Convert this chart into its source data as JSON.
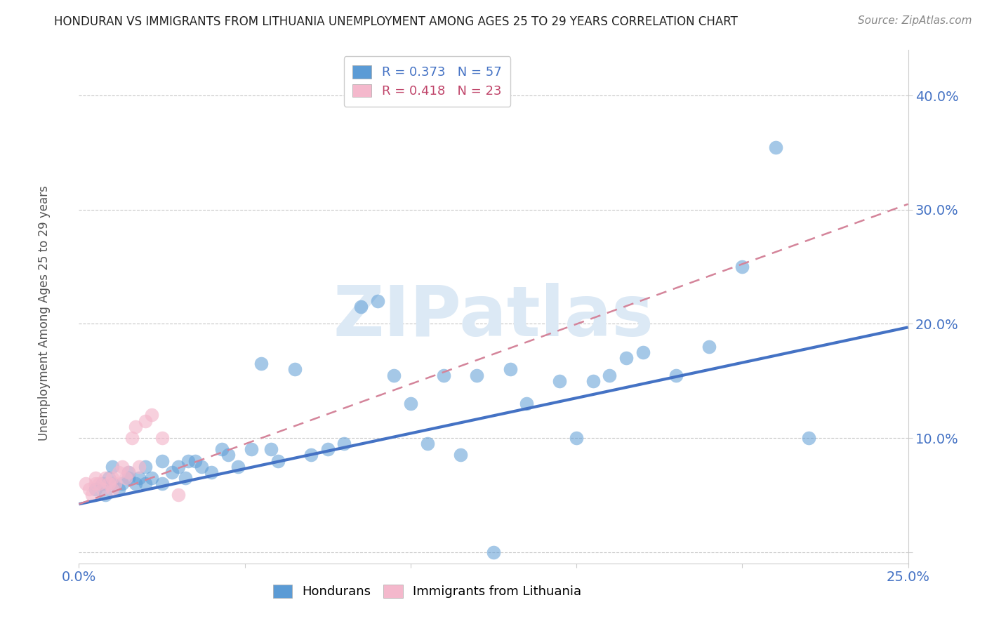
{
  "title": "HONDURAN VS IMMIGRANTS FROM LITHUANIA UNEMPLOYMENT AMONG AGES 25 TO 29 YEARS CORRELATION CHART",
  "source": "Source: ZipAtlas.com",
  "ylabel_label": "Unemployment Among Ages 25 to 29 years",
  "xlim": [
    0.0,
    0.25
  ],
  "ylim": [
    -0.01,
    0.44
  ],
  "honduran_color": "#5b9bd5",
  "honduras_edge_color": "#4472c4",
  "lithuania_color": "#f4b8cc",
  "lithuania_edge_color": "#e06080",
  "honduran_R": 0.373,
  "honduran_N": 57,
  "lithuania_R": 0.418,
  "lithuania_N": 23,
  "watermark": "ZIPatlas",
  "watermark_color": "#dce9f5",
  "background_color": "#ffffff",
  "grid_color": "#c8c8c8",
  "honduran_scatter_x": [
    0.005,
    0.007,
    0.008,
    0.009,
    0.01,
    0.01,
    0.012,
    0.013,
    0.015,
    0.015,
    0.017,
    0.018,
    0.02,
    0.02,
    0.022,
    0.025,
    0.025,
    0.028,
    0.03,
    0.032,
    0.033,
    0.035,
    0.037,
    0.04,
    0.043,
    0.045,
    0.048,
    0.052,
    0.055,
    0.058,
    0.06,
    0.065,
    0.07,
    0.075,
    0.08,
    0.085,
    0.09,
    0.095,
    0.1,
    0.105,
    0.11,
    0.115,
    0.12,
    0.13,
    0.135,
    0.145,
    0.15,
    0.155,
    0.16,
    0.165,
    0.17,
    0.18,
    0.19,
    0.2,
    0.21,
    0.22,
    0.125
  ],
  "honduran_scatter_y": [
    0.055,
    0.06,
    0.05,
    0.065,
    0.06,
    0.075,
    0.055,
    0.06,
    0.065,
    0.07,
    0.06,
    0.065,
    0.06,
    0.075,
    0.065,
    0.06,
    0.08,
    0.07,
    0.075,
    0.065,
    0.08,
    0.08,
    0.075,
    0.07,
    0.09,
    0.085,
    0.075,
    0.09,
    0.165,
    0.09,
    0.08,
    0.16,
    0.085,
    0.09,
    0.095,
    0.215,
    0.22,
    0.155,
    0.13,
    0.095,
    0.155,
    0.085,
    0.155,
    0.16,
    0.13,
    0.15,
    0.1,
    0.15,
    0.155,
    0.17,
    0.175,
    0.155,
    0.18,
    0.25,
    0.355,
    0.1,
    0.0
  ],
  "lithuania_scatter_x": [
    0.002,
    0.003,
    0.004,
    0.005,
    0.005,
    0.006,
    0.007,
    0.008,
    0.009,
    0.01,
    0.01,
    0.011,
    0.012,
    0.013,
    0.014,
    0.015,
    0.016,
    0.017,
    0.018,
    0.02,
    0.022,
    0.025,
    0.03
  ],
  "lithuania_scatter_y": [
    0.06,
    0.055,
    0.05,
    0.06,
    0.065,
    0.06,
    0.055,
    0.065,
    0.06,
    0.055,
    0.065,
    0.06,
    0.07,
    0.075,
    0.065,
    0.07,
    0.1,
    0.11,
    0.075,
    0.115,
    0.12,
    0.1,
    0.05
  ],
  "honduran_trend_x": [
    0.0,
    0.25
  ],
  "honduran_trend_y": [
    0.042,
    0.197
  ],
  "lithuania_trend_x": [
    0.0,
    0.25
  ],
  "lithuania_trend_y": [
    0.042,
    0.305
  ]
}
